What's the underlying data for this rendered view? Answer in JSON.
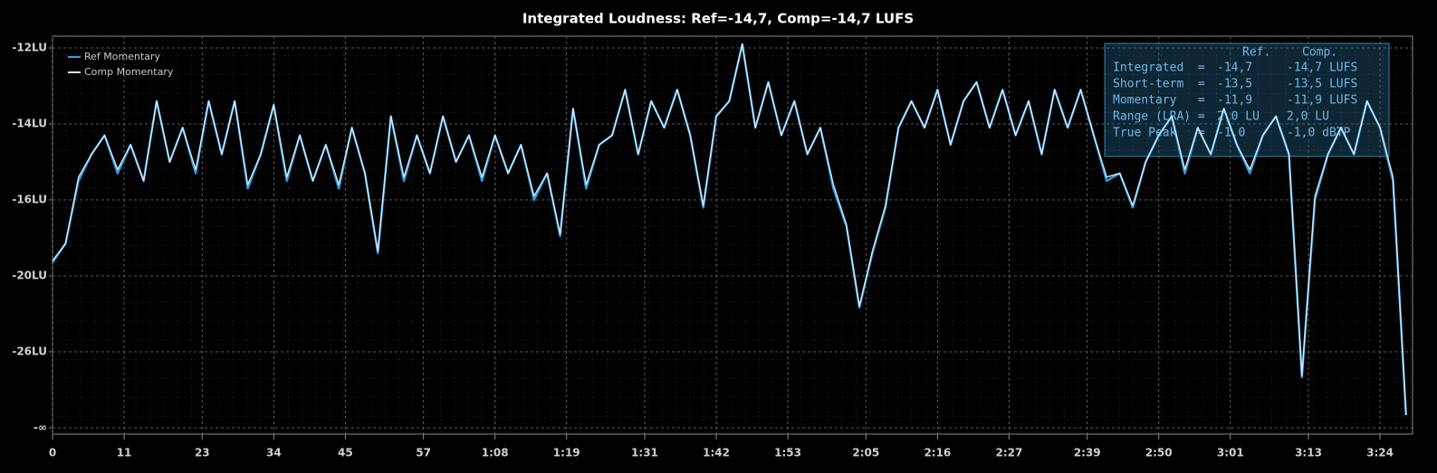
{
  "chart_data": {
    "type": "line",
    "title": "Integrated Loudness: Ref=-14,7, Comp=-14,7 LUFS",
    "x": [
      0,
      2,
      4,
      6,
      8,
      10,
      12,
      14,
      16,
      18,
      20,
      22,
      24,
      26,
      28,
      30,
      32,
      34,
      36,
      38,
      40,
      42,
      44,
      46,
      48,
      50,
      52,
      54,
      56,
      58,
      60,
      62,
      64,
      66,
      68,
      70,
      72,
      74,
      76,
      78,
      80,
      82,
      84,
      86,
      88,
      90,
      92,
      94,
      96,
      98,
      100,
      102,
      104,
      106,
      108,
      110,
      112,
      114,
      116,
      118,
      120,
      122,
      124,
      126,
      128,
      130,
      132,
      134,
      136,
      138,
      140,
      142,
      144,
      146,
      148,
      150,
      152,
      154,
      156,
      158,
      160,
      162,
      164,
      166,
      168,
      170,
      172,
      174,
      176,
      178,
      180,
      182,
      184,
      186,
      188,
      190,
      192,
      194,
      196,
      198,
      200,
      202,
      204,
      206,
      208
    ],
    "series": [
      {
        "name": "Ref Momentary",
        "color": "#2d9fe2",
        "values": [
          -19.3,
          -18.3,
          -15.5,
          -14.8,
          -14.3,
          -15.3,
          -14.55,
          -15.5,
          -13.4,
          -15.0,
          -14.1,
          -15.3,
          -13.4,
          -14.8,
          -13.4,
          -15.7,
          -14.8,
          -13.5,
          -15.5,
          -14.3,
          -15.5,
          -14.55,
          -15.7,
          -14.1,
          -15.3,
          -18.8,
          -13.8,
          -15.5,
          -14.3,
          -15.3,
          -13.8,
          -15.0,
          -14.3,
          -15.5,
          -14.3,
          -15.3,
          -14.55,
          -16.0,
          -15.3,
          -17.9,
          -13.6,
          -15.7,
          -14.55,
          -14.3,
          -13.1,
          -14.8,
          -13.4,
          -14.1,
          -13.1,
          -14.3,
          -16.4,
          -13.8,
          -13.4,
          -11.9,
          -14.1,
          -12.9,
          -14.3,
          -13.4,
          -14.8,
          -14.1,
          -15.7,
          -17.4,
          -22.5,
          -18.8,
          -16.4,
          -14.1,
          -13.4,
          -14.1,
          -13.1,
          -14.55,
          -13.4,
          -12.9,
          -14.1,
          -13.1,
          -14.3,
          -13.4,
          -14.8,
          -13.1,
          -14.1,
          -13.1,
          -14.3,
          -15.5,
          -15.3,
          -16.4,
          -15.0,
          -14.3,
          -13.8,
          -15.3,
          -14.1,
          -14.8,
          -13.6,
          -14.55,
          -15.3,
          -14.3,
          -13.8,
          -14.8,
          -28.0,
          -16.0,
          -14.8,
          -14.1,
          -14.8,
          -13.4,
          -14.1,
          -15.5,
          -31.0
        ]
      },
      {
        "name": "Comp Momentary",
        "color": "#d6e6f3",
        "values": [
          -19.2,
          -18.3,
          -15.4,
          -14.8,
          -14.3,
          -15.2,
          -14.55,
          -15.5,
          -13.4,
          -15.0,
          -14.1,
          -15.2,
          -13.4,
          -14.8,
          -13.4,
          -15.6,
          -14.8,
          -13.5,
          -15.4,
          -14.3,
          -15.5,
          -14.55,
          -15.6,
          -14.1,
          -15.3,
          -18.7,
          -13.8,
          -15.4,
          -14.3,
          -15.3,
          -13.8,
          -15.0,
          -14.3,
          -15.4,
          -14.3,
          -15.3,
          -14.55,
          -15.9,
          -15.3,
          -17.8,
          -13.6,
          -15.6,
          -14.55,
          -14.3,
          -13.1,
          -14.8,
          -13.4,
          -14.1,
          -13.1,
          -14.3,
          -16.3,
          -13.8,
          -13.4,
          -11.9,
          -14.1,
          -12.9,
          -14.3,
          -13.4,
          -14.8,
          -14.1,
          -15.6,
          -17.3,
          -22.4,
          -18.7,
          -16.3,
          -14.1,
          -13.4,
          -14.1,
          -13.1,
          -14.55,
          -13.4,
          -12.9,
          -14.1,
          -13.1,
          -14.3,
          -13.4,
          -14.8,
          -13.1,
          -14.1,
          -13.1,
          -14.3,
          -15.4,
          -15.3,
          -16.3,
          -15.0,
          -14.3,
          -13.8,
          -15.2,
          -14.1,
          -14.8,
          -13.6,
          -14.55,
          -15.2,
          -14.3,
          -13.8,
          -14.8,
          -27.9,
          -15.9,
          -14.8,
          -14.1,
          -14.8,
          -13.4,
          -14.1,
          -15.4,
          -31.0
        ]
      }
    ],
    "xlim": [
      0,
      209
    ],
    "xticks": [
      0,
      11,
      23,
      34,
      45,
      57,
      {
        "value": 68,
        "label": "1:08"
      },
      {
        "value": 79,
        "label": "1:19"
      },
      {
        "value": 91,
        "label": "1:31"
      },
      {
        "value": 102,
        "label": "1:42"
      },
      {
        "value": 113,
        "label": "1:53"
      },
      {
        "value": 125,
        "label": "2:05"
      },
      {
        "value": 136,
        "label": "2:16"
      },
      {
        "value": 147,
        "label": "2:27"
      },
      {
        "value": 159,
        "label": "2:39"
      },
      {
        "value": 170,
        "label": "2:50"
      },
      {
        "value": 181,
        "label": "3:01"
      },
      {
        "value": 193,
        "label": "3:13"
      },
      {
        "value": 204,
        "label": "3:24"
      }
    ],
    "yticks": [
      {
        "value": -12,
        "label": "-12LU"
      },
      {
        "value": -14,
        "label": "-14LU"
      },
      {
        "value": -16,
        "label": "-16LU"
      },
      {
        "value": -20,
        "label": "-20LU"
      },
      {
        "value": -26,
        "label": "-26LU"
      },
      {
        "value": null,
        "label": "-∞"
      }
    ],
    "grid": true,
    "legend": "top-left",
    "info_table": {
      "header": [
        "Ref.",
        "Comp."
      ],
      "rows": [
        [
          "Integrated  =",
          "-14,7",
          "-14,7 LUFS"
        ],
        [
          "Short-term  =",
          "-13,5",
          "-13,5 LUFS"
        ],
        [
          "Momentary   =",
          "-11,9",
          "-11,9 LUFS"
        ],
        [
          "Range (LRA) =",
          "2,0 LU",
          "2,0 LU"
        ],
        [
          "True Peak   =",
          "-1,0",
          "-1,0 dBTP"
        ]
      ]
    }
  }
}
